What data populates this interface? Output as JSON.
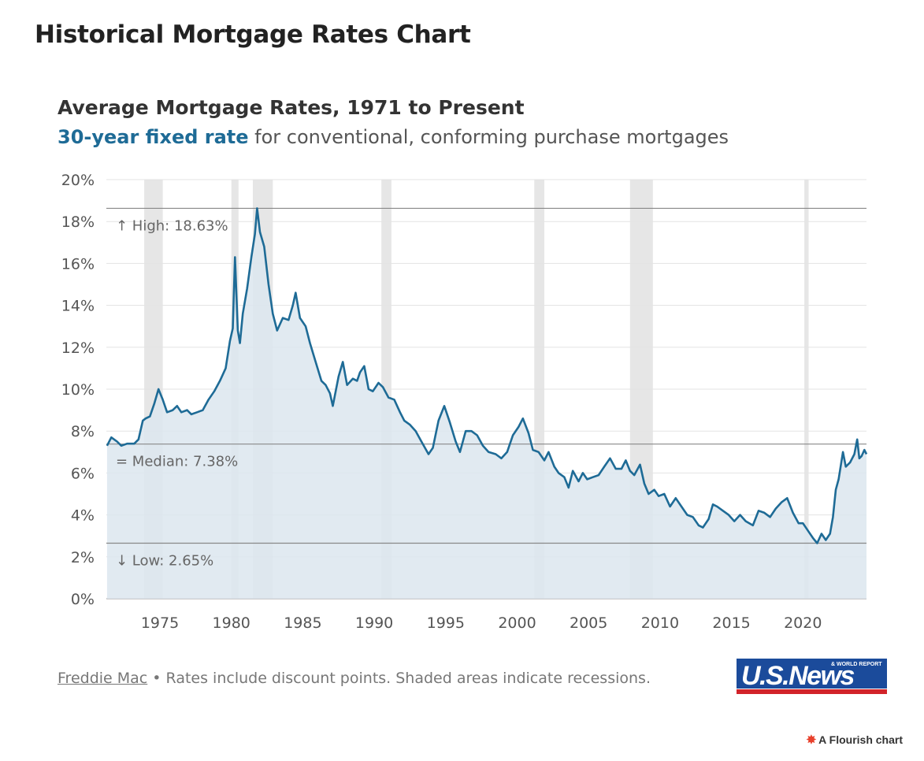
{
  "page": {
    "title": "Historical Mortgage Rates Chart"
  },
  "chart": {
    "title": "Average Mortgage Rates, 1971 to Present",
    "subtitle_highlight": "30-year fixed rate",
    "subtitle_rest": " for conventional, conforming purchase mortgages"
  },
  "footer": {
    "source": "Freddie Mac",
    "separator": " • ",
    "note": "Rates include discount points. Shaded areas indicate recessions."
  },
  "logo": {
    "text": "U.S.News",
    "small_text": "& WORLD REPORT",
    "colors": {
      "blue": "#1b4b9b",
      "red": "#d2232a"
    }
  },
  "credit": {
    "text": "A Flourish chart"
  },
  "colors": {
    "line": "#1e6b96",
    "area": "#dce6ef",
    "recession": "#e6e6e6",
    "grid": "#e3e3e3",
    "reference": "#888888"
  },
  "chart_data": {
    "type": "area",
    "title": "Average Mortgage Rates, 1971 to Present",
    "xlabel": "",
    "ylabel": "",
    "ylim": [
      0,
      20
    ],
    "xlim": [
      1971.25,
      2024.45
    ],
    "y_ticks": [
      0,
      2,
      4,
      6,
      8,
      10,
      12,
      14,
      16,
      18,
      20
    ],
    "y_tick_labels": [
      "0%",
      "2%",
      "4%",
      "6%",
      "8%",
      "10%",
      "12%",
      "14%",
      "16%",
      "18%",
      "20%"
    ],
    "x_ticks": [
      1975,
      1980,
      1985,
      1990,
      1995,
      2000,
      2005,
      2010,
      2015,
      2020
    ],
    "x_tick_labels": [
      "1975",
      "1980",
      "1985",
      "1990",
      "1995",
      "2000",
      "2005",
      "2010",
      "2015",
      "2020"
    ],
    "grid": true,
    "reference_lines": [
      {
        "label": "↑ High: 18.63%",
        "value": 18.63
      },
      {
        "label": "= Median: 7.38%",
        "value": 7.38
      },
      {
        "label": "↓ Low: 2.65%",
        "value": 2.65
      }
    ],
    "recessions": [
      [
        1973.9,
        1975.2
      ],
      [
        1980.0,
        1980.5
      ],
      [
        1981.5,
        1982.9
      ],
      [
        1990.5,
        1991.2
      ],
      [
        2001.2,
        2001.9
      ],
      [
        2007.9,
        2009.5
      ],
      [
        2020.1,
        2020.4
      ]
    ],
    "series": [
      {
        "name": "30-year fixed rate",
        "points": [
          [
            1971.3,
            7.3
          ],
          [
            1971.6,
            7.7
          ],
          [
            1972.0,
            7.5
          ],
          [
            1972.3,
            7.3
          ],
          [
            1972.7,
            7.4
          ],
          [
            1973.2,
            7.4
          ],
          [
            1973.5,
            7.6
          ],
          [
            1973.8,
            8.5
          ],
          [
            1974.0,
            8.6
          ],
          [
            1974.3,
            8.7
          ],
          [
            1974.6,
            9.3
          ],
          [
            1974.9,
            10.0
          ],
          [
            1975.2,
            9.5
          ],
          [
            1975.5,
            8.9
          ],
          [
            1975.9,
            9.0
          ],
          [
            1976.2,
            9.2
          ],
          [
            1976.5,
            8.9
          ],
          [
            1976.9,
            9.0
          ],
          [
            1977.2,
            8.8
          ],
          [
            1977.6,
            8.9
          ],
          [
            1978.0,
            9.0
          ],
          [
            1978.4,
            9.5
          ],
          [
            1978.8,
            9.9
          ],
          [
            1979.2,
            10.4
          ],
          [
            1979.6,
            11.0
          ],
          [
            1979.9,
            12.3
          ],
          [
            1980.1,
            12.9
          ],
          [
            1980.25,
            16.3
          ],
          [
            1980.45,
            12.8
          ],
          [
            1980.6,
            12.2
          ],
          [
            1980.8,
            13.6
          ],
          [
            1981.1,
            14.8
          ],
          [
            1981.4,
            16.3
          ],
          [
            1981.65,
            17.4
          ],
          [
            1981.8,
            18.63
          ],
          [
            1982.0,
            17.5
          ],
          [
            1982.3,
            16.8
          ],
          [
            1982.6,
            15.0
          ],
          [
            1982.9,
            13.6
          ],
          [
            1983.2,
            12.8
          ],
          [
            1983.6,
            13.4
          ],
          [
            1984.0,
            13.3
          ],
          [
            1984.3,
            14.0
          ],
          [
            1984.5,
            14.6
          ],
          [
            1984.8,
            13.4
          ],
          [
            1985.2,
            13.0
          ],
          [
            1985.5,
            12.2
          ],
          [
            1985.9,
            11.3
          ],
          [
            1986.3,
            10.4
          ],
          [
            1986.6,
            10.2
          ],
          [
            1986.9,
            9.8
          ],
          [
            1987.1,
            9.2
          ],
          [
            1987.5,
            10.6
          ],
          [
            1987.8,
            11.3
          ],
          [
            1988.1,
            10.2
          ],
          [
            1988.5,
            10.5
          ],
          [
            1988.8,
            10.4
          ],
          [
            1989.0,
            10.8
          ],
          [
            1989.3,
            11.1
          ],
          [
            1989.6,
            10.0
          ],
          [
            1989.9,
            9.9
          ],
          [
            1990.3,
            10.3
          ],
          [
            1990.6,
            10.1
          ],
          [
            1991.0,
            9.6
          ],
          [
            1991.4,
            9.5
          ],
          [
            1991.8,
            8.9
          ],
          [
            1992.1,
            8.5
          ],
          [
            1992.5,
            8.3
          ],
          [
            1992.9,
            8.0
          ],
          [
            1993.3,
            7.5
          ],
          [
            1993.8,
            6.9
          ],
          [
            1994.1,
            7.2
          ],
          [
            1994.5,
            8.5
          ],
          [
            1994.9,
            9.2
          ],
          [
            1995.3,
            8.4
          ],
          [
            1995.7,
            7.5
          ],
          [
            1996.0,
            7.0
          ],
          [
            1996.4,
            8.0
          ],
          [
            1996.8,
            8.0
          ],
          [
            1997.2,
            7.8
          ],
          [
            1997.6,
            7.3
          ],
          [
            1998.0,
            7.0
          ],
          [
            1998.5,
            6.9
          ],
          [
            1998.9,
            6.7
          ],
          [
            1999.3,
            7.0
          ],
          [
            1999.7,
            7.8
          ],
          [
            2000.1,
            8.2
          ],
          [
            2000.4,
            8.6
          ],
          [
            2000.8,
            7.9
          ],
          [
            2001.1,
            7.1
          ],
          [
            2001.5,
            7.0
          ],
          [
            2001.9,
            6.6
          ],
          [
            2002.2,
            7.0
          ],
          [
            2002.6,
            6.3
          ],
          [
            2002.9,
            6.0
          ],
          [
            2003.3,
            5.8
          ],
          [
            2003.6,
            5.3
          ],
          [
            2003.9,
            6.1
          ],
          [
            2004.3,
            5.6
          ],
          [
            2004.6,
            6.0
          ],
          [
            2004.9,
            5.7
          ],
          [
            2005.3,
            5.8
          ],
          [
            2005.7,
            5.9
          ],
          [
            2006.1,
            6.3
          ],
          [
            2006.5,
            6.7
          ],
          [
            2006.9,
            6.2
          ],
          [
            2007.3,
            6.2
          ],
          [
            2007.6,
            6.6
          ],
          [
            2007.9,
            6.1
          ],
          [
            2008.2,
            5.9
          ],
          [
            2008.6,
            6.4
          ],
          [
            2008.9,
            5.5
          ],
          [
            2009.2,
            5.0
          ],
          [
            2009.6,
            5.2
          ],
          [
            2009.9,
            4.9
          ],
          [
            2010.3,
            5.0
          ],
          [
            2010.7,
            4.4
          ],
          [
            2011.1,
            4.8
          ],
          [
            2011.5,
            4.4
          ],
          [
            2011.9,
            4.0
          ],
          [
            2012.3,
            3.9
          ],
          [
            2012.7,
            3.5
          ],
          [
            2013.0,
            3.4
          ],
          [
            2013.4,
            3.8
          ],
          [
            2013.7,
            4.5
          ],
          [
            2014.0,
            4.4
          ],
          [
            2014.4,
            4.2
          ],
          [
            2014.8,
            4.0
          ],
          [
            2015.2,
            3.7
          ],
          [
            2015.6,
            4.0
          ],
          [
            2016.0,
            3.7
          ],
          [
            2016.5,
            3.5
          ],
          [
            2016.9,
            4.2
          ],
          [
            2017.3,
            4.1
          ],
          [
            2017.7,
            3.9
          ],
          [
            2018.1,
            4.3
          ],
          [
            2018.5,
            4.6
          ],
          [
            2018.9,
            4.8
          ],
          [
            2019.3,
            4.1
          ],
          [
            2019.7,
            3.6
          ],
          [
            2020.0,
            3.6
          ],
          [
            2020.3,
            3.3
          ],
          [
            2020.7,
            2.9
          ],
          [
            2021.0,
            2.65
          ],
          [
            2021.3,
            3.1
          ],
          [
            2021.6,
            2.8
          ],
          [
            2021.9,
            3.1
          ],
          [
            2022.1,
            3.9
          ],
          [
            2022.3,
            5.2
          ],
          [
            2022.5,
            5.7
          ],
          [
            2022.8,
            7.0
          ],
          [
            2023.0,
            6.3
          ],
          [
            2023.3,
            6.5
          ],
          [
            2023.6,
            6.9
          ],
          [
            2023.8,
            7.6
          ],
          [
            2023.95,
            6.7
          ],
          [
            2024.1,
            6.8
          ],
          [
            2024.3,
            7.1
          ],
          [
            2024.45,
            6.9
          ]
        ]
      }
    ]
  }
}
